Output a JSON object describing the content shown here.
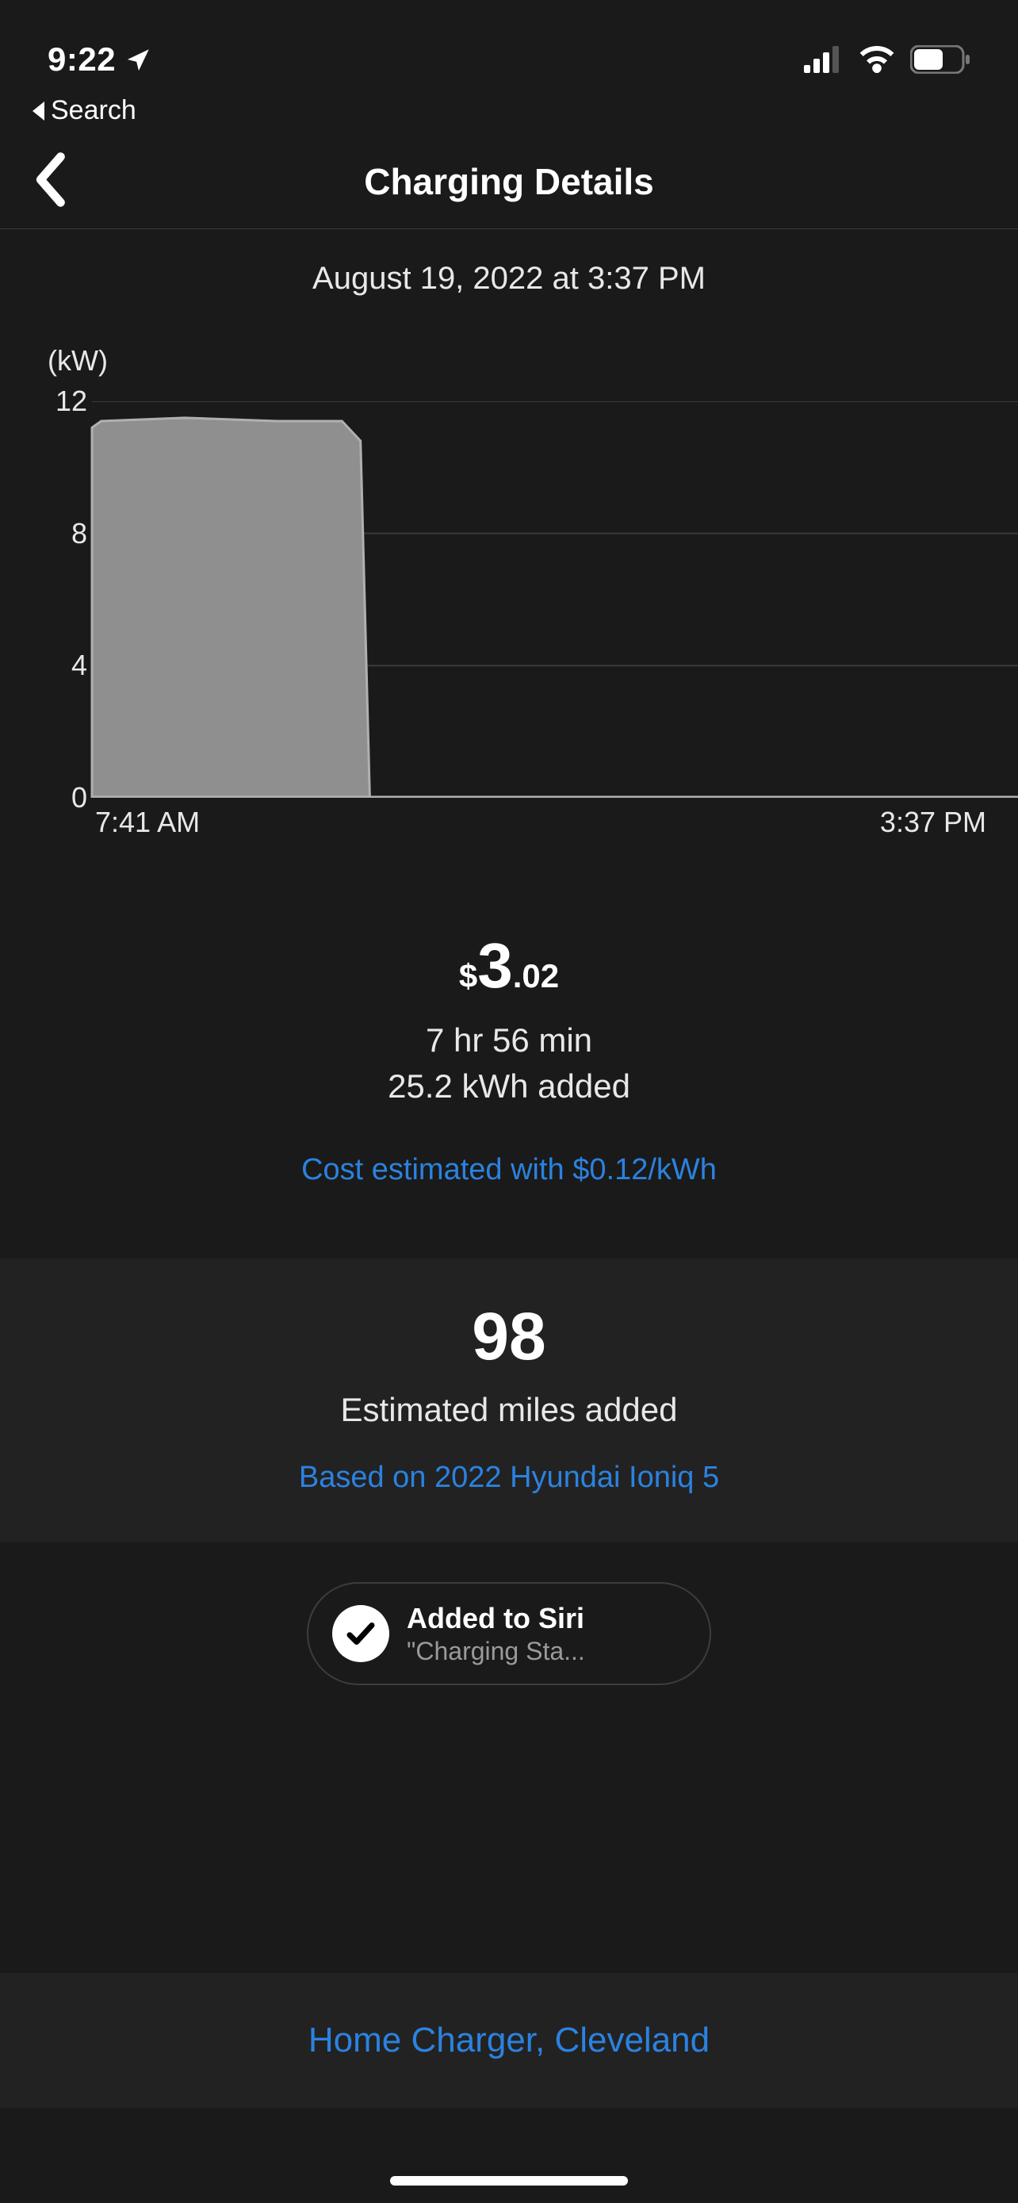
{
  "status": {
    "time": "9:22",
    "breadcrumb": "Search"
  },
  "nav": {
    "title": "Charging Details"
  },
  "date_line": "August 19, 2022 at 3:37 PM",
  "chart": {
    "type": "area",
    "y_unit": "(kW)",
    "ylim": [
      0,
      12
    ],
    "yticks": [
      0,
      4,
      8,
      12
    ],
    "grid_color": "#3a3a3a",
    "axis_color": "#9a9a9a",
    "fill_color": "#8f8f8f",
    "stroke_color": "#b0b0b0",
    "background": "#1a1a1a",
    "x_start_label": "7:41 AM",
    "x_end_label": "3:37 PM",
    "points": [
      {
        "x": 0.0,
        "y": 11.2
      },
      {
        "x": 0.01,
        "y": 11.4
      },
      {
        "x": 0.1,
        "y": 11.5
      },
      {
        "x": 0.2,
        "y": 11.4
      },
      {
        "x": 0.27,
        "y": 11.4
      },
      {
        "x": 0.29,
        "y": 10.8
      },
      {
        "x": 0.3,
        "y": 0.0
      },
      {
        "x": 1.0,
        "y": 0.0
      }
    ]
  },
  "summary": {
    "cost_symbol": "$",
    "cost_whole": "3",
    "cost_decimal": ".02",
    "duration": "7 hr 56 min",
    "energy": "25.2 kWh added",
    "rate_note": "Cost estimated with $0.12/kWh"
  },
  "miles": {
    "value": "98",
    "label": "Estimated miles added",
    "basis": "Based on 2022 Hyundai Ioniq 5"
  },
  "siri": {
    "title": "Added to Siri",
    "subtitle": "\"Charging Sta..."
  },
  "footer": {
    "charger": "Home Charger, Cleveland"
  },
  "colors": {
    "link": "#2b82e0",
    "bg": "#1a1a1a",
    "card": "#222222",
    "text": "#e8e8e8"
  }
}
